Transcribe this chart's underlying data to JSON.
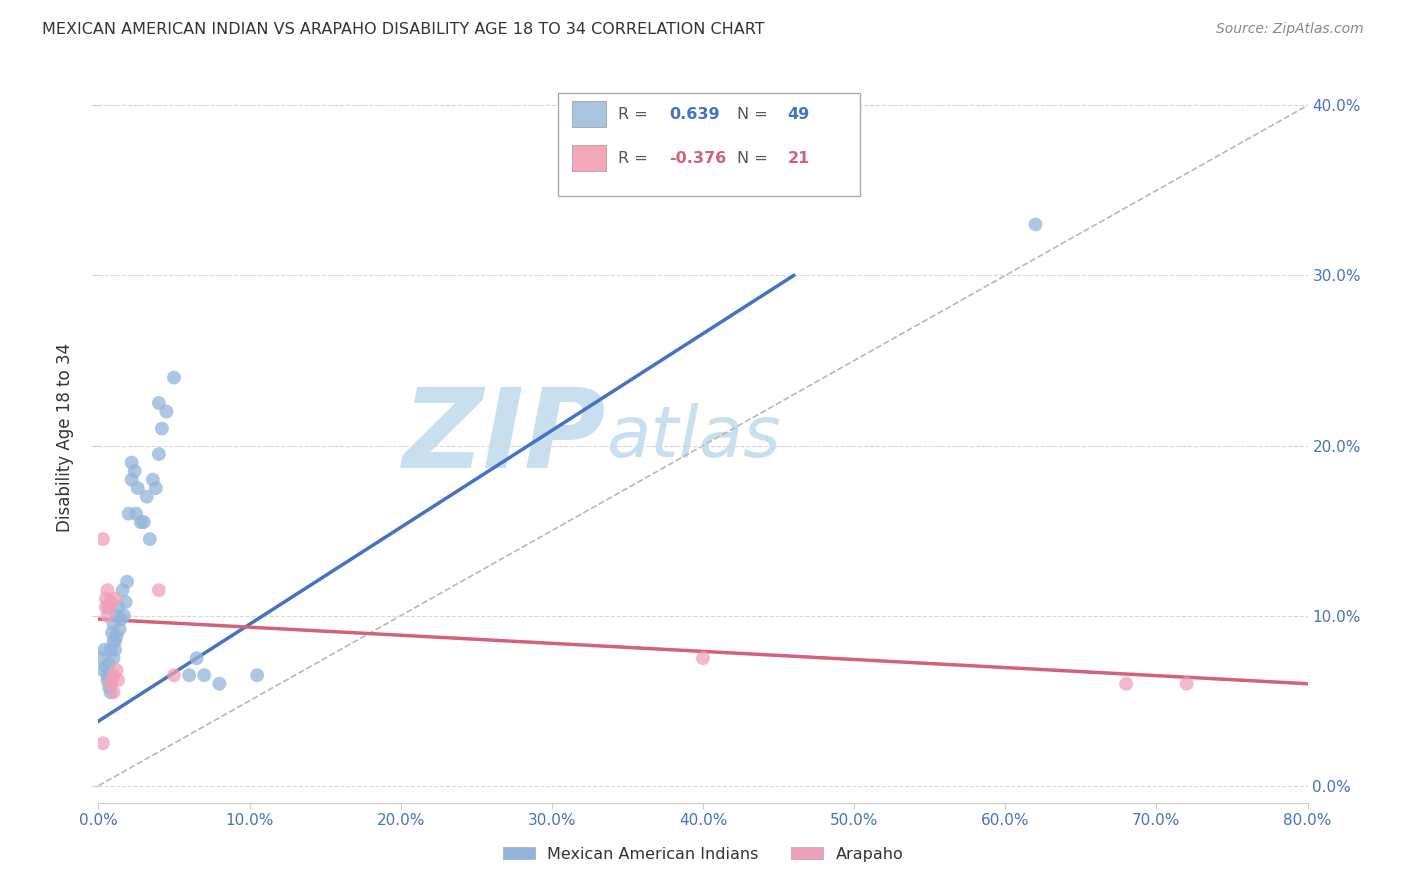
{
  "title": "MEXICAN AMERICAN INDIAN VS ARAPAHO DISABILITY AGE 18 TO 34 CORRELATION CHART",
  "source": "Source: ZipAtlas.com",
  "ylabel": "Disability Age 18 to 34",
  "xlim": [
    0.0,
    0.8
  ],
  "ylim": [
    -0.01,
    0.42
  ],
  "legend_entries": [
    {
      "label": "Mexican American Indians",
      "color": "#a8c4e0",
      "R": "0.639",
      "N": "49"
    },
    {
      "label": "Arapaho",
      "color": "#f4a7b9",
      "R": "-0.376",
      "N": "21"
    }
  ],
  "blue_scatter": [
    [
      0.002,
      0.075
    ],
    [
      0.003,
      0.068
    ],
    [
      0.004,
      0.08
    ],
    [
      0.005,
      0.07
    ],
    [
      0.006,
      0.065
    ],
    [
      0.006,
      0.062
    ],
    [
      0.007,
      0.072
    ],
    [
      0.007,
      0.058
    ],
    [
      0.008,
      0.08
    ],
    [
      0.008,
      0.055
    ],
    [
      0.009,
      0.09
    ],
    [
      0.009,
      0.063
    ],
    [
      0.01,
      0.095
    ],
    [
      0.01,
      0.085
    ],
    [
      0.01,
      0.075
    ],
    [
      0.011,
      0.085
    ],
    [
      0.011,
      0.08
    ],
    [
      0.012,
      0.1
    ],
    [
      0.012,
      0.088
    ],
    [
      0.013,
      0.105
    ],
    [
      0.014,
      0.092
    ],
    [
      0.015,
      0.098
    ],
    [
      0.016,
      0.115
    ],
    [
      0.017,
      0.1
    ],
    [
      0.018,
      0.108
    ],
    [
      0.019,
      0.12
    ],
    [
      0.02,
      0.16
    ],
    [
      0.022,
      0.18
    ],
    [
      0.022,
      0.19
    ],
    [
      0.024,
      0.185
    ],
    [
      0.025,
      0.16
    ],
    [
      0.026,
      0.175
    ],
    [
      0.028,
      0.155
    ],
    [
      0.03,
      0.155
    ],
    [
      0.032,
      0.17
    ],
    [
      0.034,
      0.145
    ],
    [
      0.036,
      0.18
    ],
    [
      0.038,
      0.175
    ],
    [
      0.04,
      0.195
    ],
    [
      0.04,
      0.225
    ],
    [
      0.042,
      0.21
    ],
    [
      0.045,
      0.22
    ],
    [
      0.05,
      0.24
    ],
    [
      0.06,
      0.065
    ],
    [
      0.065,
      0.075
    ],
    [
      0.07,
      0.065
    ],
    [
      0.08,
      0.06
    ],
    [
      0.62,
      0.33
    ],
    [
      0.105,
      0.065
    ]
  ],
  "pink_scatter": [
    [
      0.003,
      0.145
    ],
    [
      0.005,
      0.105
    ],
    [
      0.005,
      0.11
    ],
    [
      0.006,
      0.115
    ],
    [
      0.006,
      0.1
    ],
    [
      0.007,
      0.105
    ],
    [
      0.007,
      0.105
    ],
    [
      0.008,
      0.108
    ],
    [
      0.008,
      0.06
    ],
    [
      0.009,
      0.062
    ],
    [
      0.01,
      0.065
    ],
    [
      0.01,
      0.055
    ],
    [
      0.011,
      0.11
    ],
    [
      0.012,
      0.068
    ],
    [
      0.013,
      0.062
    ],
    [
      0.04,
      0.115
    ],
    [
      0.05,
      0.065
    ],
    [
      0.4,
      0.075
    ],
    [
      0.68,
      0.06
    ],
    [
      0.72,
      0.06
    ],
    [
      0.003,
      0.025
    ]
  ],
  "blue_line_x": [
    0.0,
    0.46
  ],
  "blue_line_y": [
    0.038,
    0.3
  ],
  "pink_line_x": [
    0.0,
    0.8
  ],
  "pink_line_y": [
    0.098,
    0.06
  ],
  "diagonal_line_x": [
    0.0,
    0.8
  ],
  "diagonal_line_y": [
    0.0,
    0.4
  ],
  "blue_color": "#4472c4",
  "blue_scatter_color": "#92b4da",
  "pink_color": "#d4607a",
  "pink_scatter_color": "#f0a0b8",
  "diagonal_color": "#b8b8b8",
  "grid_color": "#d8d8d8",
  "title_color": "#333333",
  "axis_label_color": "#4472c4",
  "background_color": "#ffffff",
  "watermark_zip": "ZIP",
  "watermark_atlas": "atlas",
  "watermark_color": "#c8dff0"
}
